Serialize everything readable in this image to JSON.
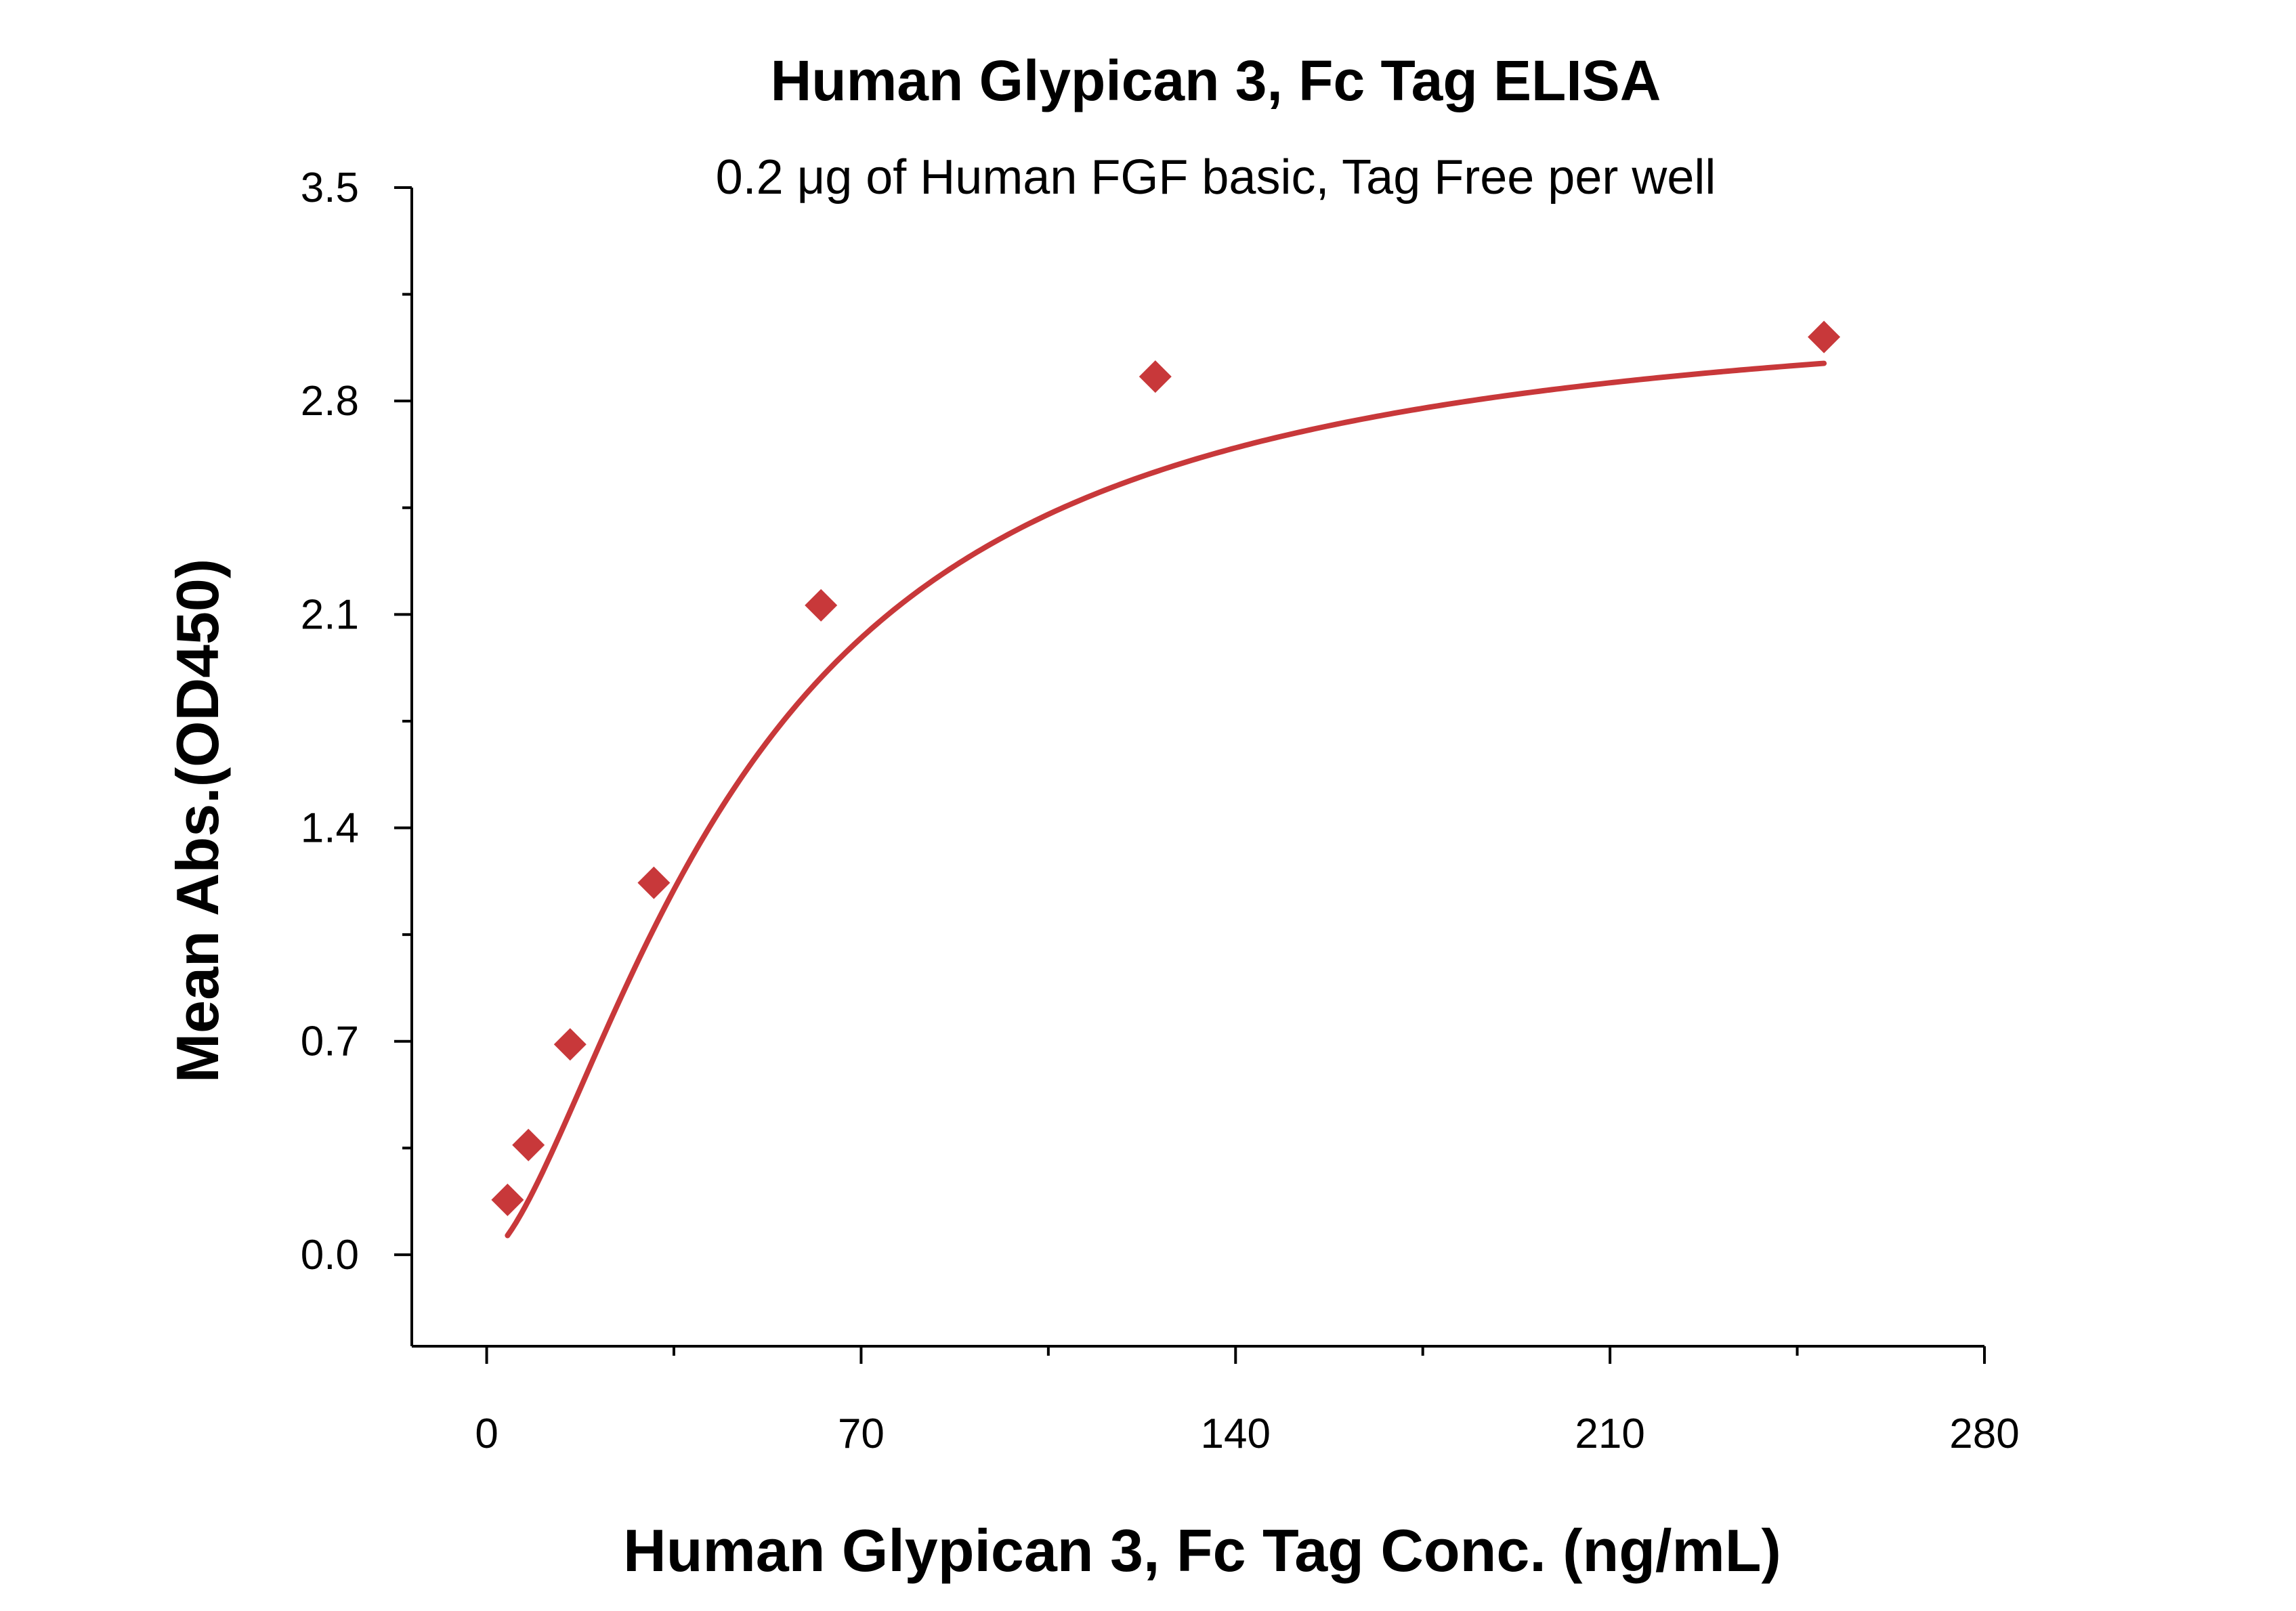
{
  "chart_data": {
    "type": "scatter",
    "title": "Human Glypican 3, Fc Tag ELISA",
    "subtitle": "0.2 μg of Human FGF basic, Tag Free per well",
    "xlabel": "Human Glypican 3, Fc Tag Conc. (ng/mL)",
    "ylabel": "Mean Abs.(OD450)",
    "xlim": [
      -14,
      280
    ],
    "ylim": [
      -0.3,
      3.5
    ],
    "x_ticks": [
      "0",
      "70",
      "140",
      "210",
      "280"
    ],
    "y_ticks": [
      "0.0",
      "0.7",
      "1.4",
      "2.1",
      "2.8",
      "3.5"
    ],
    "grid": false,
    "colors": {
      "series": "#c8383a",
      "axis": "#000000"
    },
    "series": [
      {
        "marker": "diamond",
        "fit": "4-parameter logistic",
        "x": [
          3.9,
          7.8,
          15.6,
          31.25,
          62.5,
          125,
          250
        ],
        "y": [
          0.18,
          0.36,
          0.69,
          1.22,
          2.13,
          2.88,
          3.01
        ]
      }
    ]
  }
}
